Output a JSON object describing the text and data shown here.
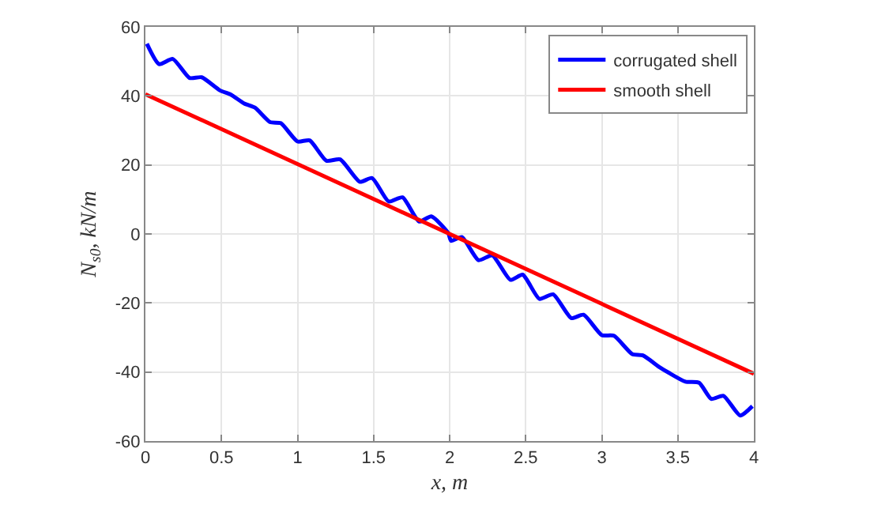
{
  "chart_data": {
    "type": "line",
    "xlabel": "x, m",
    "ylabel": "N$_{s0}$, kN/m",
    "xlim": [
      0,
      4
    ],
    "ylim": [
      -60,
      60
    ],
    "xticks": [
      0,
      0.5,
      1,
      1.5,
      2,
      2.5,
      3,
      3.5,
      4
    ],
    "yticks": [
      -60,
      -40,
      -20,
      0,
      20,
      40,
      60
    ],
    "grid": true,
    "legend": "top right",
    "line_style": "solid",
    "marker": "none",
    "series": [
      {
        "name": "corrugated shell",
        "color": "#0000ff",
        "x": [
          0.01,
          0.09,
          0.18,
          0.29,
          0.37,
          0.49,
          0.56,
          0.65,
          0.72,
          0.82,
          0.89,
          1.0,
          1.08,
          1.19,
          1.28,
          1.41,
          1.49,
          1.6,
          1.69,
          1.8,
          1.88,
          1.99,
          2.01,
          2.08,
          2.19,
          2.28,
          2.4,
          2.48,
          2.59,
          2.68,
          2.8,
          2.88,
          3.0,
          3.08,
          3.2,
          3.27,
          3.38,
          3.44,
          3.55,
          3.64,
          3.72,
          3.8,
          3.91,
          3.99
        ],
        "values": [
          55.1,
          49.2,
          50.7,
          45.2,
          45.4,
          41.6,
          40.4,
          37.8,
          36.6,
          32.4,
          32.1,
          26.8,
          27.1,
          21.2,
          21.6,
          15.1,
          16.2,
          9.4,
          10.6,
          3.6,
          5.1,
          0.3,
          -2.0,
          -0.9,
          -7.6,
          -6.2,
          -13.3,
          -11.8,
          -18.8,
          -17.5,
          -24.4,
          -23.4,
          -29.3,
          -29.5,
          -34.8,
          -35.2,
          -38.6,
          -40.2,
          -42.8,
          -43.1,
          -47.8,
          -46.9,
          -52.6,
          -49.9
        ]
      },
      {
        "name": "smooth shell",
        "color": "#ff0000",
        "x": [
          0,
          4
        ],
        "values": [
          40.5,
          -40.5
        ]
      }
    ]
  }
}
